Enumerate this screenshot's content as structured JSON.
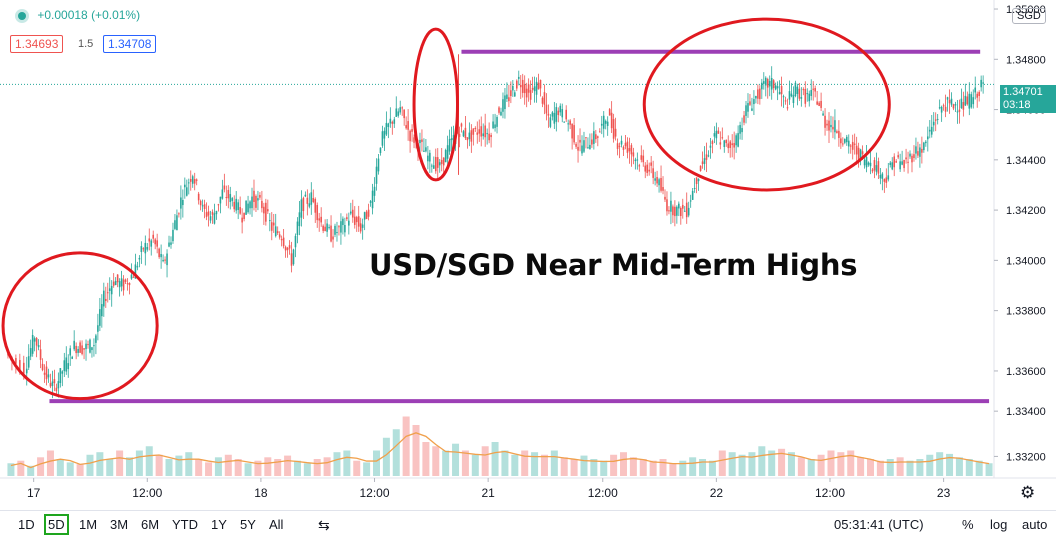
{
  "legend": {
    "change": "+0.00018 (+0.01%)",
    "bid": "1.34693",
    "spread": "1.5",
    "ask": "1.34708",
    "currency": "SGD"
  },
  "last_price": {
    "value": "1.34701",
    "countdown": "03:18"
  },
  "headline": "USD/SGD Near Mid-Term Highs",
  "bottom_bar": {
    "timeframes": [
      "1D",
      "5D",
      "1M",
      "3M",
      "6M",
      "YTD",
      "1Y",
      "5Y",
      "All"
    ],
    "active_timeframe": "5D",
    "clock": "05:31:41 (UTC)",
    "percent": "%",
    "log": "log",
    "auto": "auto"
  },
  "colors": {
    "up": "#26a69a",
    "down": "#ef5350",
    "level": "#9c3fb5",
    "circle": "#e0191f",
    "volume_ma": "#f0a04b"
  },
  "chart_data": {
    "type": "candlestick",
    "title": "",
    "y_ticks": [
      1.3322,
      1.334,
      1.3356,
      1.338,
      1.34,
      1.342,
      1.344,
      1.346,
      1.348,
      1.35
    ],
    "y_tick_labels": [
      "1.33200",
      "1.33400",
      "1.33600",
      "1.33800",
      "1.34000",
      "1.34200",
      "1.34400",
      "1.34600",
      "1.34800",
      "1.35000"
    ],
    "ylim": [
      1.3315,
      1.3502
    ],
    "x_labels": [
      "17",
      "12:00",
      "18",
      "12:00",
      "21",
      "12:00",
      "22",
      "12:00",
      "23"
    ],
    "x_range": [
      0,
      100
    ],
    "x_label_positions": [
      2.8,
      14.3,
      25.8,
      37.3,
      48.8,
      60.4,
      71.9,
      83.4,
      94.9
    ],
    "path_points": [
      [
        0,
        1.3363
      ],
      [
        2,
        1.3357
      ],
      [
        3,
        1.337
      ],
      [
        4,
        1.3355
      ],
      [
        5,
        1.3349
      ],
      [
        6,
        1.3358
      ],
      [
        7,
        1.3366
      ],
      [
        8,
        1.3365
      ],
      [
        9,
        1.3367
      ],
      [
        10,
        1.3385
      ],
      [
        11,
        1.3392
      ],
      [
        12,
        1.339
      ],
      [
        13,
        1.3395
      ],
      [
        14,
        1.3405
      ],
      [
        15,
        1.3408
      ],
      [
        16,
        1.3398
      ],
      [
        17,
        1.3412
      ],
      [
        18,
        1.3427
      ],
      [
        19,
        1.3435
      ],
      [
        20,
        1.342
      ],
      [
        21,
        1.3417
      ],
      [
        22,
        1.3427
      ],
      [
        23,
        1.3424
      ],
      [
        24,
        1.3418
      ],
      [
        25,
        1.3425
      ],
      [
        26,
        1.3422
      ],
      [
        27,
        1.3413
      ],
      [
        28,
        1.341
      ],
      [
        29,
        1.34
      ],
      [
        30,
        1.3422
      ],
      [
        31,
        1.3425
      ],
      [
        32,
        1.3415
      ],
      [
        33,
        1.341
      ],
      [
        34,
        1.3413
      ],
      [
        35,
        1.3418
      ],
      [
        36,
        1.3413
      ],
      [
        37,
        1.3422
      ],
      [
        38,
        1.3447
      ],
      [
        39,
        1.3455
      ],
      [
        40,
        1.346
      ],
      [
        41,
        1.345
      ],
      [
        42,
        1.3446
      ],
      [
        43,
        1.344
      ],
      [
        44,
        1.3437
      ],
      [
        45,
        1.3446
      ],
      [
        46,
        1.3452
      ],
      [
        47,
        1.3449
      ],
      [
        48,
        1.3452
      ],
      [
        49,
        1.345
      ],
      [
        50,
        1.346
      ],
      [
        51,
        1.3465
      ],
      [
        52,
        1.3472
      ],
      [
        53,
        1.3466
      ],
      [
        54,
        1.347
      ],
      [
        55,
        1.3455
      ],
      [
        56,
        1.346
      ],
      [
        57,
        1.3455
      ],
      [
        58,
        1.3445
      ],
      [
        59,
        1.3447
      ],
      [
        60,
        1.345
      ],
      [
        61,
        1.3458
      ],
      [
        62,
        1.3447
      ],
      [
        63,
        1.3445
      ],
      [
        64,
        1.344
      ],
      [
        65,
        1.3437
      ],
      [
        66,
        1.3432
      ],
      [
        67,
        1.3422
      ],
      [
        68,
        1.342
      ],
      [
        69,
        1.342
      ],
      [
        70,
        1.3433
      ],
      [
        71,
        1.3442
      ],
      [
        72,
        1.345
      ],
      [
        73,
        1.3445
      ],
      [
        74,
        1.3448
      ],
      [
        75,
        1.346
      ],
      [
        76,
        1.3465
      ],
      [
        77,
        1.347
      ],
      [
        78,
        1.347
      ],
      [
        79,
        1.3462
      ],
      [
        80,
        1.3468
      ],
      [
        81,
        1.3465
      ],
      [
        82,
        1.3466
      ],
      [
        83,
        1.3455
      ],
      [
        84,
        1.3453
      ],
      [
        85,
        1.3447
      ],
      [
        86,
        1.3444
      ],
      [
        87,
        1.344
      ],
      [
        88,
        1.3438
      ],
      [
        89,
        1.3432
      ],
      [
        90,
        1.344
      ],
      [
        91,
        1.3438
      ],
      [
        92,
        1.3443
      ],
      [
        93,
        1.3445
      ],
      [
        94,
        1.3455
      ],
      [
        95,
        1.3462
      ],
      [
        96,
        1.3462
      ],
      [
        97,
        1.3462
      ],
      [
        98,
        1.3465
      ],
      [
        99,
        1.347
      ]
    ],
    "resistance_level": 1.3483,
    "support_level": 1.3344,
    "spike_high": 1.3482,
    "spike_low": 1.3434,
    "volume_levels": [
      0.15,
      0.18,
      0.12,
      0.22,
      0.3,
      0.2,
      0.16,
      0.14,
      0.25,
      0.28,
      0.2,
      0.3,
      0.22,
      0.3,
      0.35,
      0.25,
      0.2,
      0.24,
      0.28,
      0.2,
      0.16,
      0.22,
      0.25,
      0.2,
      0.15,
      0.18,
      0.22,
      0.2,
      0.24,
      0.18,
      0.15,
      0.2,
      0.22,
      0.28,
      0.3,
      0.18,
      0.16,
      0.3,
      0.45,
      0.55,
      0.7,
      0.6,
      0.4,
      0.35,
      0.3,
      0.38,
      0.3,
      0.25,
      0.35,
      0.4,
      0.3,
      0.25,
      0.3,
      0.28,
      0.25,
      0.3,
      0.22,
      0.2,
      0.24,
      0.2,
      0.18,
      0.25,
      0.28,
      0.22,
      0.2,
      0.18,
      0.2,
      0.15,
      0.18,
      0.22,
      0.2,
      0.18,
      0.3,
      0.28,
      0.25,
      0.28,
      0.35,
      0.3,
      0.32,
      0.28,
      0.22,
      0.2,
      0.25,
      0.3,
      0.28,
      0.3,
      0.22,
      0.2,
      0.18,
      0.2,
      0.22,
      0.18,
      0.2,
      0.25,
      0.28,
      0.26,
      0.22,
      0.2,
      0.18,
      0.15
    ],
    "annotation_ellipses": [
      {
        "label": "left-low-circle",
        "cx": 7.5,
        "cy": 1.3374,
        "rx": 7.8,
        "ry": 0.0029
      },
      {
        "label": "spike-circle",
        "cx": 43.5,
        "cy": 1.3462,
        "rx": 2.2,
        "ry": 0.003
      },
      {
        "label": "top-circle",
        "cx": 77,
        "cy": 1.3462,
        "rx": 12.4,
        "ry": 0.0034
      }
    ]
  }
}
